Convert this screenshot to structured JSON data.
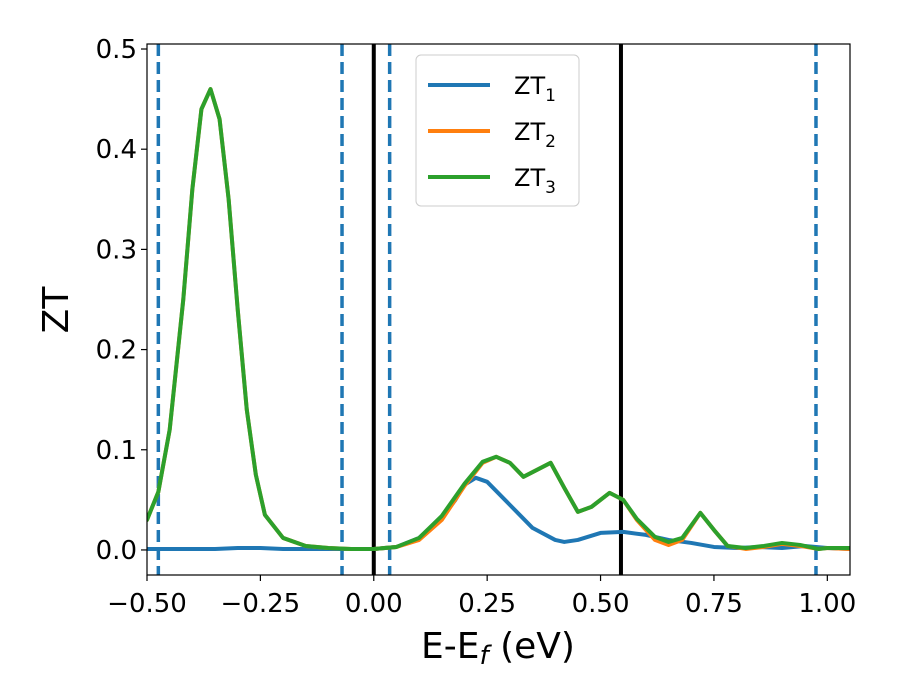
{
  "chart_data": {
    "type": "line",
    "xlabel": "E-E",
    "xlabel_sub": "f",
    "xlabel_unit": " (eV)",
    "ylabel": "ZT",
    "xlim": [
      -0.5,
      1.05
    ],
    "ylim": [
      -0.025,
      0.505
    ],
    "xticks": [
      -0.5,
      -0.25,
      0.0,
      0.25,
      0.5,
      0.75,
      1.0
    ],
    "xtick_labels": [
      "−0.50",
      "−0.25",
      "0.00",
      "0.25",
      "0.50",
      "0.75",
      "1.00"
    ],
    "yticks": [
      0.0,
      0.1,
      0.2,
      0.3,
      0.4,
      0.5
    ],
    "ytick_labels": [
      "0.0",
      "0.1",
      "0.2",
      "0.3",
      "0.4",
      "0.5"
    ],
    "legend_position": "top-center",
    "grid": false,
    "vlines": [
      {
        "x": -0.475,
        "style": "dashed",
        "color": "#1f77b4"
      },
      {
        "x": -0.07,
        "style": "dashed",
        "color": "#1f77b4"
      },
      {
        "x": 0.0,
        "style": "solid",
        "color": "#000000"
      },
      {
        "x": 0.035,
        "style": "dashed",
        "color": "#1f77b4"
      },
      {
        "x": 0.545,
        "style": "solid",
        "color": "#000000"
      },
      {
        "x": 0.975,
        "style": "dashed",
        "color": "#1f77b4"
      }
    ],
    "series": [
      {
        "name": "ZT",
        "name_sub": "1",
        "color": "#1f77b4",
        "points": [
          [
            -0.5,
            0.001
          ],
          [
            -0.45,
            0.001
          ],
          [
            -0.4,
            0.001
          ],
          [
            -0.35,
            0.001
          ],
          [
            -0.3,
            0.002
          ],
          [
            -0.25,
            0.002
          ],
          [
            -0.2,
            0.001
          ],
          [
            -0.1,
            0.001
          ],
          [
            -0.05,
            0.001
          ],
          [
            0.0,
            0.001
          ],
          [
            0.05,
            0.003
          ],
          [
            0.1,
            0.012
          ],
          [
            0.15,
            0.032
          ],
          [
            0.18,
            0.05
          ],
          [
            0.2,
            0.065
          ],
          [
            0.225,
            0.072
          ],
          [
            0.25,
            0.068
          ],
          [
            0.3,
            0.045
          ],
          [
            0.35,
            0.022
          ],
          [
            0.4,
            0.01
          ],
          [
            0.42,
            0.008
          ],
          [
            0.45,
            0.01
          ],
          [
            0.5,
            0.017
          ],
          [
            0.55,
            0.018
          ],
          [
            0.6,
            0.015
          ],
          [
            0.65,
            0.01
          ],
          [
            0.7,
            0.007
          ],
          [
            0.75,
            0.003
          ],
          [
            0.8,
            0.002
          ],
          [
            0.85,
            0.003
          ],
          [
            0.9,
            0.002
          ],
          [
            0.95,
            0.004
          ],
          [
            1.0,
            0.002
          ],
          [
            1.05,
            0.001
          ]
        ]
      },
      {
        "name": "ZT",
        "name_sub": "2",
        "color": "#ff7f0e",
        "points": [
          [
            -0.5,
            0.03
          ],
          [
            -0.475,
            0.058
          ],
          [
            -0.45,
            0.12
          ],
          [
            -0.42,
            0.25
          ],
          [
            -0.4,
            0.36
          ],
          [
            -0.38,
            0.44
          ],
          [
            -0.36,
            0.46
          ],
          [
            -0.34,
            0.43
          ],
          [
            -0.32,
            0.35
          ],
          [
            -0.3,
            0.24
          ],
          [
            -0.28,
            0.14
          ],
          [
            -0.26,
            0.075
          ],
          [
            -0.24,
            0.035
          ],
          [
            -0.2,
            0.012
          ],
          [
            -0.15,
            0.004
          ],
          [
            -0.1,
            0.002
          ],
          [
            -0.05,
            0.001
          ],
          [
            0.0,
            0.001
          ],
          [
            0.05,
            0.003
          ],
          [
            0.1,
            0.01
          ],
          [
            0.15,
            0.03
          ],
          [
            0.2,
            0.064
          ],
          [
            0.24,
            0.087
          ],
          [
            0.27,
            0.093
          ],
          [
            0.3,
            0.087
          ],
          [
            0.33,
            0.073
          ],
          [
            0.36,
            0.08
          ],
          [
            0.39,
            0.087
          ],
          [
            0.42,
            0.062
          ],
          [
            0.45,
            0.038
          ],
          [
            0.48,
            0.043
          ],
          [
            0.52,
            0.057
          ],
          [
            0.55,
            0.05
          ],
          [
            0.58,
            0.03
          ],
          [
            0.62,
            0.01
          ],
          [
            0.65,
            0.005
          ],
          [
            0.68,
            0.01
          ],
          [
            0.72,
            0.037
          ],
          [
            0.75,
            0.02
          ],
          [
            0.78,
            0.004
          ],
          [
            0.82,
            0.001
          ],
          [
            0.86,
            0.003
          ],
          [
            0.9,
            0.006
          ],
          [
            0.94,
            0.004
          ],
          [
            0.98,
            0.001
          ],
          [
            1.0,
            0.002
          ],
          [
            1.05,
            0.001
          ]
        ]
      },
      {
        "name": "ZT",
        "name_sub": "3",
        "color": "#2ca02c",
        "points": [
          [
            -0.5,
            0.03
          ],
          [
            -0.475,
            0.058
          ],
          [
            -0.45,
            0.12
          ],
          [
            -0.42,
            0.25
          ],
          [
            -0.4,
            0.36
          ],
          [
            -0.38,
            0.44
          ],
          [
            -0.36,
            0.46
          ],
          [
            -0.34,
            0.43
          ],
          [
            -0.32,
            0.35
          ],
          [
            -0.3,
            0.24
          ],
          [
            -0.28,
            0.14
          ],
          [
            -0.26,
            0.075
          ],
          [
            -0.24,
            0.035
          ],
          [
            -0.2,
            0.012
          ],
          [
            -0.15,
            0.004
          ],
          [
            -0.1,
            0.002
          ],
          [
            -0.05,
            0.001
          ],
          [
            0.0,
            0.001
          ],
          [
            0.05,
            0.003
          ],
          [
            0.1,
            0.012
          ],
          [
            0.15,
            0.034
          ],
          [
            0.2,
            0.066
          ],
          [
            0.24,
            0.088
          ],
          [
            0.27,
            0.093
          ],
          [
            0.3,
            0.087
          ],
          [
            0.33,
            0.073
          ],
          [
            0.36,
            0.08
          ],
          [
            0.39,
            0.087
          ],
          [
            0.42,
            0.062
          ],
          [
            0.45,
            0.038
          ],
          [
            0.48,
            0.043
          ],
          [
            0.52,
            0.057
          ],
          [
            0.55,
            0.05
          ],
          [
            0.58,
            0.031
          ],
          [
            0.62,
            0.013
          ],
          [
            0.65,
            0.008
          ],
          [
            0.68,
            0.012
          ],
          [
            0.72,
            0.037
          ],
          [
            0.75,
            0.02
          ],
          [
            0.78,
            0.004
          ],
          [
            0.82,
            0.002
          ],
          [
            0.86,
            0.004
          ],
          [
            0.9,
            0.007
          ],
          [
            0.94,
            0.005
          ],
          [
            0.98,
            0.001
          ],
          [
            1.0,
            0.002
          ],
          [
            1.05,
            0.002
          ]
        ]
      }
    ]
  }
}
